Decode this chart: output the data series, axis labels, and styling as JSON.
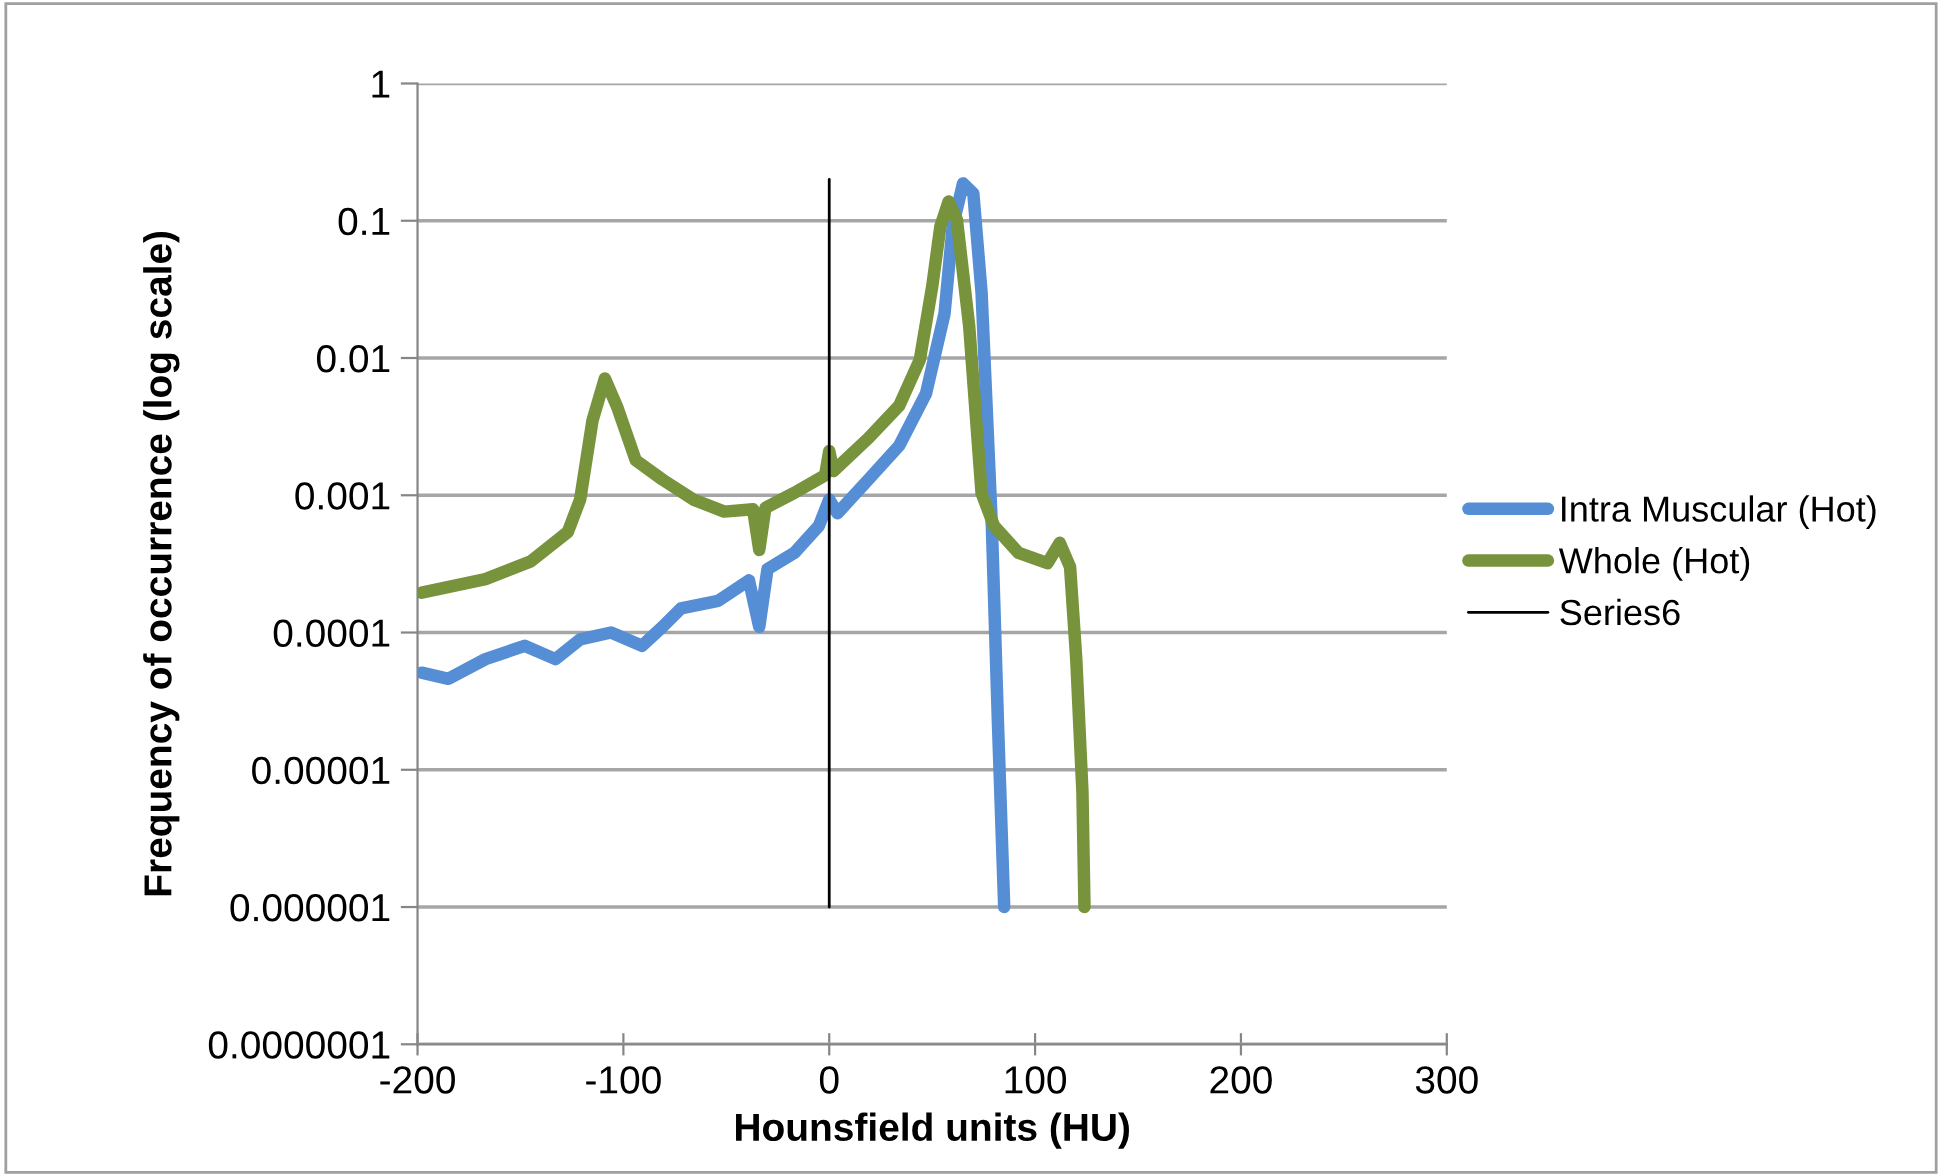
{
  "chart_data": {
    "type": "line",
    "xlabel": "Hounsfield units (HU)",
    "ylabel": "Frequency of occurrence (log scale)",
    "log": "y",
    "grid": "y",
    "legend": "right",
    "marker": "none",
    "line_style": "solid",
    "xlim": [
      -200,
      300
    ],
    "xticks": [
      -200,
      -100,
      0,
      100,
      200,
      300
    ],
    "ylim": [
      1e-07,
      1
    ],
    "yticks": [
      {
        "value": 1e-07,
        "label": "0.0000001"
      },
      {
        "value": 1e-06,
        "label": "0.000001"
      },
      {
        "value": 1e-05,
        "label": "0.00001"
      },
      {
        "value": 0.0001,
        "label": "0.0001"
      },
      {
        "value": 0.001,
        "label": "0.001"
      },
      {
        "value": 0.01,
        "label": "0.01"
      },
      {
        "value": 0.1,
        "label": "0.1"
      },
      {
        "value": 1,
        "label": "1"
      }
    ],
    "series": [
      {
        "name": "Intra Muscular (Hot)",
        "color": "#558ed5",
        "x": [
          -198,
          -185,
          -167,
          -148,
          -133,
          -121,
          -106,
          -91,
          -81,
          -72,
          -54,
          -39,
          -34,
          -30,
          -17,
          -5,
          0,
          4,
          19,
          34,
          47,
          56,
          60,
          65,
          70,
          74,
          79,
          82,
          85
        ],
        "values": [
          5.1e-05,
          4.6e-05,
          6.4e-05,
          8e-05,
          6.4e-05,
          8.9e-05,
          0.0001,
          8e-05,
          0.00011,
          0.00015,
          0.00017,
          0.00024,
          0.00011,
          0.00029,
          0.00038,
          0.0006,
          0.00093,
          0.00074,
          0.0013,
          0.0023,
          0.0055,
          0.021,
          0.091,
          0.187,
          0.158,
          0.03,
          0.0006,
          2.1e-05,
          1e-06
        ]
      },
      {
        "name": "Whole (Hot)",
        "color": "#77933c",
        "x": [
          -198,
          -167,
          -145,
          -127,
          -121,
          -115,
          -109,
          -103,
          -94,
          -81,
          -66,
          -51,
          -37,
          -34,
          -31,
          -17,
          -2,
          0,
          2,
          19,
          34,
          44,
          50,
          54,
          58,
          62,
          68,
          74,
          80,
          92,
          106,
          112,
          117,
          120,
          123,
          124
        ],
        "values": [
          0.000195,
          0.000245,
          0.00033,
          0.00054,
          0.00093,
          0.0035,
          0.0071,
          0.0044,
          0.0018,
          0.0013,
          0.00093,
          0.00076,
          0.00079,
          0.0004,
          0.00081,
          0.00104,
          0.0014,
          0.0021,
          0.0015,
          0.0026,
          0.0045,
          0.0097,
          0.033,
          0.091,
          0.138,
          0.102,
          0.017,
          0.00104,
          0.0006,
          0.00038,
          0.00032,
          0.00045,
          0.0003,
          6.4e-05,
          6.9e-06,
          1e-06
        ]
      },
      {
        "name": "Series6",
        "color": "#000000",
        "x": [
          0,
          0
        ],
        "values": [
          0.2,
          1e-06
        ]
      }
    ]
  }
}
